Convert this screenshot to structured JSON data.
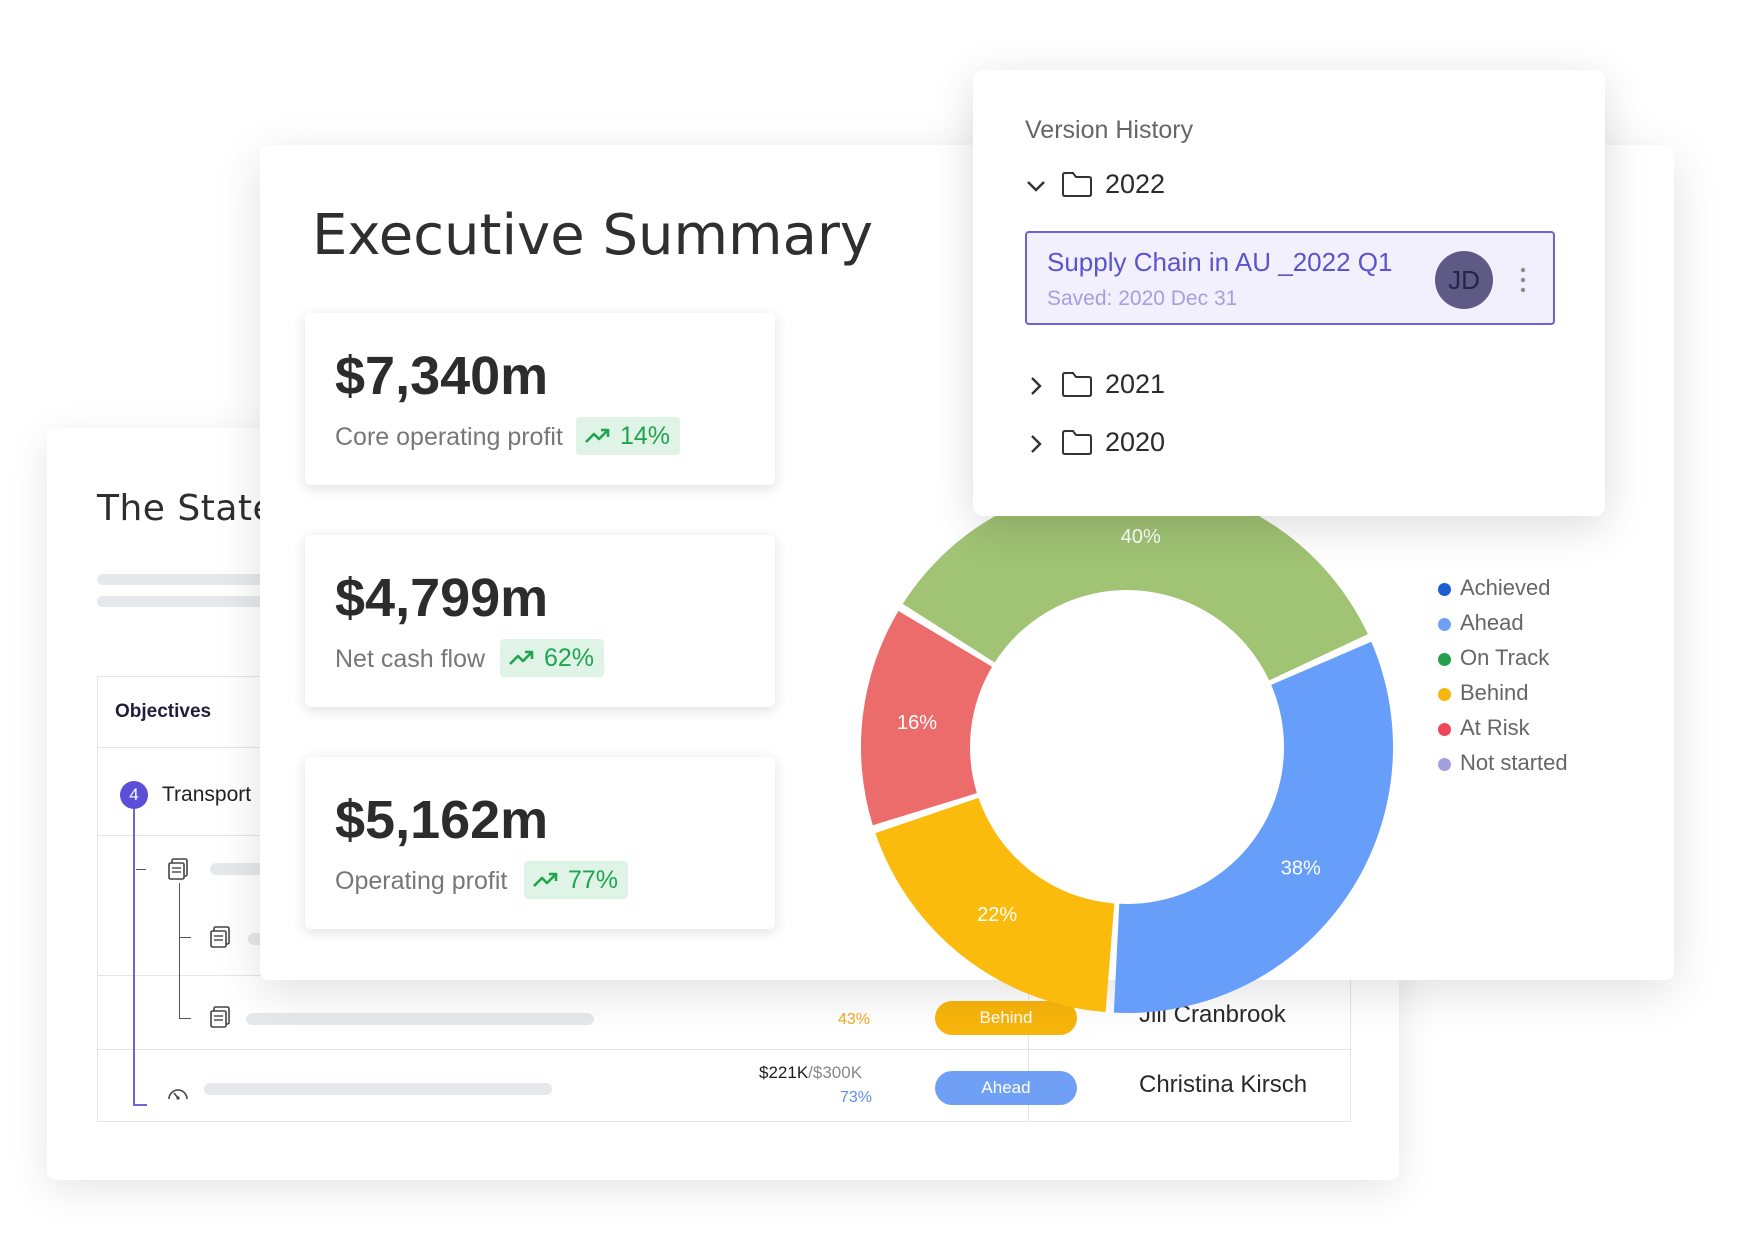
{
  "back_card": {
    "title": "The State",
    "table": {
      "column_objectives": "Objectives",
      "row_count_badge": "4",
      "row_title": "Transport",
      "rows": [
        {
          "progress_pct": "43%",
          "status": "Behind",
          "owner": "Jill Cranbrook"
        },
        {
          "amount": "$221K",
          "target": "/$300K",
          "progress_pct": "73%",
          "status": "Ahead",
          "owner": "Christina Kirsch"
        }
      ]
    }
  },
  "exec": {
    "title": "Executive Summary",
    "kpis": [
      {
        "value": "$7,340m",
        "label": "Core operating profit",
        "change": "14%"
      },
      {
        "value": "$4,799m",
        "label": "Net cash flow",
        "change": "62%"
      },
      {
        "value": "$5,162m",
        "label": "Operating profit",
        "change": "77%"
      }
    ]
  },
  "chart_data": {
    "type": "pie",
    "donut": true,
    "slices": [
      {
        "label": "16%",
        "value": 16,
        "color": "#ec6b6b"
      },
      {
        "label": "40%",
        "value": 40,
        "color": "#a0c374"
      },
      {
        "label": "38%",
        "value": 38,
        "color": "#679ef9"
      },
      {
        "label": "22%",
        "value": 22,
        "color": "#fbbb0c"
      }
    ],
    "legend": [
      {
        "label": "Achieved",
        "color": "#1c5fd2"
      },
      {
        "label": "Ahead",
        "color": "#6fa0f6"
      },
      {
        "label": "On Track",
        "color": "#24a04c"
      },
      {
        "label": "Behind",
        "color": "#f6b50f"
      },
      {
        "label": "At Risk",
        "color": "#ee4757"
      },
      {
        "label": "Not started",
        "color": "#a49fe0"
      }
    ],
    "legend_position": "right"
  },
  "version_history": {
    "title": "Version History",
    "years": [
      "2022",
      "2021",
      "2020"
    ],
    "selected": {
      "title": "Supply Chain in AU _2022 Q1",
      "subtitle": "Saved: 2020 Dec 31",
      "avatar": "JD"
    }
  },
  "colors": {
    "accent": "#5b4fd8",
    "behind": "#f8b50c",
    "ahead": "#6fa0f6",
    "positive": "#21a34f"
  }
}
